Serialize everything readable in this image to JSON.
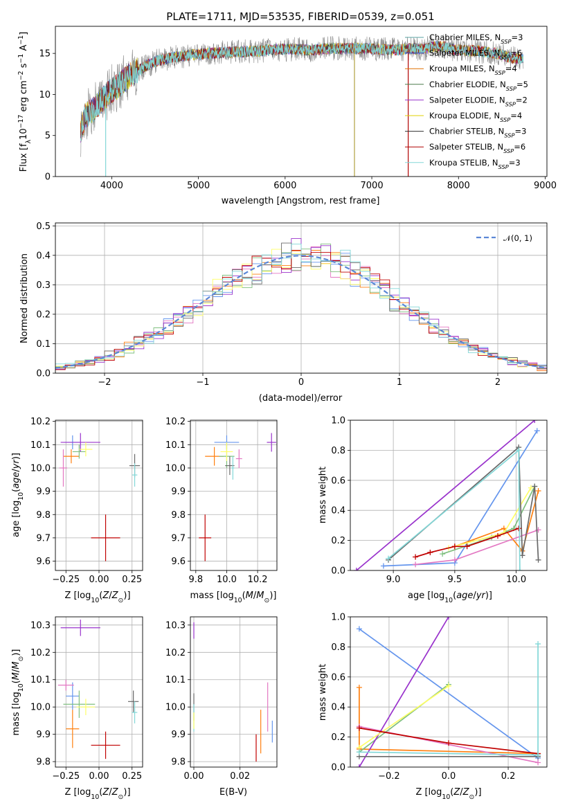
{
  "figure_title": "PLATE=1711, MJD=53535, FIBERID=0539, z=0.051",
  "model_colors": [
    "#6495ed",
    "#ff7f0e",
    "#e377c2",
    "#7fbf7f",
    "#9932cc",
    "#ffff66",
    "#696969",
    "#c00000",
    "#82d7d7"
  ],
  "chart_data": [
    {
      "id": "spectrum",
      "type": "line",
      "title": "PLATE=1711, MJD=53535, FIBERID=0539, z=0.051",
      "xlabel": "wavelength [Angstrom, rest frame]",
      "ylabel": "Flux [f_λ 10^-17 erg cm^-2 s^-1 A^-1]",
      "xlim": [
        3350,
        9020
      ],
      "ylim": [
        0,
        18.3
      ],
      "xticks": [
        4000,
        5000,
        6000,
        7000,
        8000,
        9000
      ],
      "yticks": [
        0,
        5,
        10,
        15
      ],
      "grid": false,
      "legend_position": "right",
      "legend": [
        {
          "base": "Chabrier MILES, N",
          "sub": "SSP",
          "tail": "=3",
          "color": "#5aa0a0"
        },
        {
          "base": "Salpeter MILES, N",
          "sub": "SSP",
          "tail": "=6",
          "color": "#2f4fcf"
        },
        {
          "base": "Kroupa MILES, N",
          "sub": "SSP",
          "tail": "=4",
          "color": "#e07000"
        },
        {
          "base": "Chabrier ELODIE, N",
          "sub": "SSP",
          "tail": "=5",
          "color": "#4a7a4a"
        },
        {
          "base": "Salpeter ELODIE, N",
          "sub": "SSP",
          "tail": "=2",
          "color": "#9932cc"
        },
        {
          "base": "Kroupa ELODIE, N",
          "sub": "SSP",
          "tail": "=4",
          "color": "#e0d000"
        },
        {
          "base": "Chabrier STELIB, N",
          "sub": "SSP",
          "tail": "=3",
          "color": "#303030"
        },
        {
          "base": "Salpeter STELIB, N",
          "sub": "SSP",
          "tail": "=6",
          "color": "#b00000"
        },
        {
          "base": "Kroupa STELIB, N",
          "sub": "SSP",
          "tail": "=3",
          "color": "#82d7d7"
        }
      ],
      "continuum_points": {
        "x": [
          3640,
          3700,
          3800,
          3900,
          4000,
          4100,
          4200,
          4300,
          4400,
          4500,
          4700,
          4900,
          5100,
          5300,
          5500,
          5700,
          5900,
          6100,
          6300,
          6500,
          6700,
          6900,
          7100,
          7300,
          7450,
          7600,
          7700,
          7800,
          7900,
          8000,
          8200,
          8400,
          8600,
          8750
        ],
        "y": [
          5.5,
          7.5,
          8.2,
          9.5,
          10.5,
          11.3,
          12.3,
          12.9,
          13.5,
          14.0,
          14.5,
          14.8,
          15.0,
          15.1,
          15.2,
          15.3,
          15.5,
          15.5,
          15.4,
          15.6,
          15.6,
          15.6,
          15.5,
          15.4,
          15.6,
          15.5,
          15.8,
          15.9,
          15.6,
          15.4,
          15.3,
          15.1,
          14.5,
          14.3
        ]
      },
      "drops": [
        {
          "x": 3930,
          "y_min": 0
        },
        {
          "x": 6800,
          "y_min": 0
        },
        {
          "x": 7420,
          "y_min": 0
        }
      ]
    },
    {
      "id": "residuals",
      "type": "step",
      "xlabel": "(data-model)/error",
      "ylabel": "Normed distribution",
      "xlim": [
        -2.5,
        2.5
      ],
      "ylim": [
        0,
        0.51
      ],
      "xticks": [
        -2,
        -1,
        0,
        1,
        2
      ],
      "yticks": [
        0.0,
        0.1,
        0.2,
        0.3,
        0.4,
        0.5
      ],
      "grid": true,
      "legend": [
        {
          "label": "𝒩(0, 1)",
          "color": "#5b87d6",
          "style": "dashed"
        }
      ],
      "legend_position": "top-right",
      "reference_curve": {
        "name": "𝒩(0, 1)",
        "mean": 0,
        "sigma": 1
      },
      "bin_width": 0.1,
      "bin_start": -2.5,
      "bins": 50
    },
    {
      "id": "age_vs_Z",
      "type": "errorbar",
      "xlabel": "Z [log10(Z/Z⊙)]",
      "ylabel": "age [log10(age/yr)]",
      "xlim": [
        -0.33,
        0.33
      ],
      "ylim": [
        9.56,
        10.205
      ],
      "xticks": [
        -0.25,
        0.0,
        0.25
      ],
      "yticks": [
        9.6,
        9.7,
        9.8,
        9.9,
        10.0,
        10.1,
        10.2
      ],
      "grid": true,
      "points": [
        {
          "x": -0.2,
          "y": 10.11,
          "xerr": 0.06,
          "yerr": 0.03,
          "color": "#6495ed"
        },
        {
          "x": -0.21,
          "y": 10.05,
          "xerr": 0.06,
          "yerr": 0.03,
          "color": "#ff7f0e"
        },
        {
          "x": -0.27,
          "y": 10.0,
          "xerr": 0.03,
          "yerr": 0.08,
          "color": "#e377c2"
        },
        {
          "x": -0.15,
          "y": 10.07,
          "xerr": 0.05,
          "yerr": 0.03,
          "color": "#7fbf7f"
        },
        {
          "x": -0.14,
          "y": 10.11,
          "xerr": 0.15,
          "yerr": 0.04,
          "color": "#9932cc"
        },
        {
          "x": -0.1,
          "y": 10.08,
          "xerr": 0.05,
          "yerr": 0.03,
          "color": "#ffff66"
        },
        {
          "x": 0.27,
          "y": 10.01,
          "xerr": 0.04,
          "yerr": 0.05,
          "color": "#696969"
        },
        {
          "x": 0.05,
          "y": 9.7,
          "xerr": 0.11,
          "yerr": 0.1,
          "color": "#c00000"
        },
        {
          "x": 0.27,
          "y": 9.97,
          "xerr": 0.02,
          "yerr": 0.05,
          "color": "#82d7d7"
        }
      ]
    },
    {
      "id": "age_vs_mass",
      "type": "errorbar",
      "xlabel": "mass [log10(M/M⊙)]",
      "ylabel": "",
      "xlim": [
        9.765,
        10.325
      ],
      "ylim": [
        9.56,
        10.205
      ],
      "xticks": [
        9.8,
        10.0,
        10.2
      ],
      "yticks": [
        9.6,
        9.7,
        9.8,
        9.9,
        10.0,
        10.1,
        10.2
      ],
      "grid": true,
      "points": [
        {
          "x": 10.0,
          "y": 10.11,
          "xerr": 0.08,
          "yerr": 0.03,
          "color": "#6495ed"
        },
        {
          "x": 9.92,
          "y": 10.05,
          "xerr": 0.06,
          "yerr": 0.04,
          "color": "#ff7f0e"
        },
        {
          "x": 10.08,
          "y": 10.04,
          "xerr": 0.02,
          "yerr": 0.04,
          "color": "#e377c2"
        },
        {
          "x": 10.0,
          "y": 10.05,
          "xerr": 0.05,
          "yerr": 0.05,
          "color": "#7fbf7f"
        },
        {
          "x": 10.29,
          "y": 10.11,
          "xerr": 0.03,
          "yerr": 0.04,
          "color": "#9932cc"
        },
        {
          "x": 10.0,
          "y": 10.07,
          "xerr": 0.04,
          "yerr": 0.04,
          "color": "#ffff66"
        },
        {
          "x": 10.02,
          "y": 10.01,
          "xerr": 0.03,
          "yerr": 0.04,
          "color": "#696969"
        },
        {
          "x": 9.86,
          "y": 9.7,
          "xerr": 0.04,
          "yerr": 0.1,
          "color": "#c00000"
        },
        {
          "x": 10.04,
          "y": 10.0,
          "xerr": 0.01,
          "yerr": 0.05,
          "color": "#82d7d7"
        }
      ]
    },
    {
      "id": "massweight_vs_age",
      "type": "line",
      "xlabel": "age [log10(age/yr)]",
      "ylabel": "mass weight",
      "xlim": [
        8.65,
        10.25
      ],
      "ylim": [
        0,
        1.0
      ],
      "xticks": [
        9.0,
        9.5,
        10.0
      ],
      "yticks": [
        0.0,
        0.2,
        0.4,
        0.6,
        0.8,
        1.0
      ],
      "grid": true,
      "series": [
        {
          "color": "#6495ed",
          "points": [
            [
              8.92,
              0.03
            ],
            [
              9.5,
              0.05
            ],
            [
              10.17,
              0.93
            ]
          ]
        },
        {
          "color": "#ff7f0e",
          "points": [
            [
              9.5,
              0.16
            ],
            [
              9.9,
              0.28
            ],
            [
              10.05,
              0.13
            ],
            [
              10.18,
              0.53
            ]
          ]
        },
        {
          "color": "#e377c2",
          "points": [
            [
              9.18,
              0.04
            ],
            [
              9.5,
              0.07
            ],
            [
              10.18,
              0.27
            ]
          ]
        },
        {
          "color": "#7fbf7f",
          "points": [
            [
              9.4,
              0.11
            ],
            [
              9.8,
              0.22
            ],
            [
              9.98,
              0.28
            ],
            [
              10.15,
              0.56
            ]
          ]
        },
        {
          "color": "#9932cc",
          "points": [
            [
              8.7,
              0.0
            ],
            [
              10.15,
              1.0
            ]
          ]
        },
        {
          "color": "#ffff66",
          "points": [
            [
              9.45,
              0.15
            ],
            [
              9.9,
              0.25
            ],
            [
              10.12,
              0.55
            ]
          ]
        },
        {
          "color": "#696969",
          "points": [
            [
              8.96,
              0.07
            ],
            [
              10.02,
              0.82
            ],
            [
              10.05,
              0.1
            ],
            [
              10.15,
              0.56
            ],
            [
              10.18,
              0.07
            ]
          ]
        },
        {
          "color": "#c00000",
          "points": [
            [
              9.18,
              0.09
            ],
            [
              9.3,
              0.12
            ],
            [
              9.5,
              0.16
            ],
            [
              9.6,
              0.16
            ],
            [
              9.85,
              0.23
            ],
            [
              10.02,
              0.28
            ]
          ]
        },
        {
          "color": "#82d7d7",
          "points": [
            [
              8.96,
              0.08
            ],
            [
              10.02,
              0.8
            ],
            [
              10.03,
              0.0
            ]
          ]
        }
      ]
    },
    {
      "id": "mass_vs_Z",
      "type": "errorbar",
      "xlabel": "Z [log10(Z/Z⊙)]",
      "ylabel": "mass [log10(M/M⊙)]",
      "xlim": [
        -0.33,
        0.33
      ],
      "ylim": [
        9.78,
        10.33
      ],
      "xticks": [
        -0.25,
        0.0,
        0.25
      ],
      "yticks": [
        9.8,
        9.9,
        10.0,
        10.1,
        10.2,
        10.3
      ],
      "grid": true,
      "points": [
        {
          "x": -0.2,
          "y": 10.04,
          "xerr": 0.05,
          "yerr": 0.05,
          "color": "#6495ed"
        },
        {
          "x": -0.2,
          "y": 9.92,
          "xerr": 0.05,
          "yerr": 0.07,
          "color": "#ff7f0e"
        },
        {
          "x": -0.25,
          "y": 10.08,
          "xerr": 0.06,
          "yerr": 0.02,
          "color": "#e377c2"
        },
        {
          "x": -0.15,
          "y": 10.01,
          "xerr": 0.12,
          "yerr": 0.05,
          "color": "#7fbf7f"
        },
        {
          "x": -0.14,
          "y": 10.29,
          "xerr": 0.15,
          "yerr": 0.03,
          "color": "#9932cc"
        },
        {
          "x": -0.1,
          "y": 10.0,
          "xerr": 0.07,
          "yerr": 0.03,
          "color": "#ffff66"
        },
        {
          "x": 0.26,
          "y": 10.02,
          "xerr": 0.04,
          "yerr": 0.04,
          "color": "#696969"
        },
        {
          "x": 0.05,
          "y": 9.86,
          "xerr": 0.11,
          "yerr": 0.05,
          "color": "#c00000"
        },
        {
          "x": 0.27,
          "y": 9.98,
          "xerr": 0.02,
          "yerr": 0.04,
          "color": "#82d7d7"
        }
      ]
    },
    {
      "id": "mass_vs_ebv",
      "type": "errorbar",
      "xlabel": "E(B-V)",
      "ylabel": "",
      "xlim": [
        -0.0015,
        0.036
      ],
      "ylim": [
        9.78,
        10.33
      ],
      "xticks": [
        0.0,
        0.02
      ],
      "yticks": [
        9.8,
        9.9,
        10.0,
        10.1,
        10.2,
        10.3
      ],
      "grid": true,
      "points": [
        {
          "x": 0.0,
          "y": 10.28,
          "xerr": 0.0,
          "yerr": 0.03,
          "color": "#9932cc"
        },
        {
          "x": 0.0,
          "y": 10.0,
          "xerr": 0.0,
          "yerr": 0.05,
          "color": "#696969"
        },
        {
          "x": 0.0,
          "y": 9.96,
          "xerr": 0.0,
          "yerr": 0.05,
          "color": "#82d7d7"
        },
        {
          "x": 0.0,
          "y": 9.95,
          "xerr": 0.0,
          "yerr": 0.03,
          "color": "#ffff66"
        },
        {
          "x": 0.027,
          "y": 9.85,
          "xerr": 0.0,
          "yerr": 0.05,
          "color": "#c00000"
        },
        {
          "x": 0.029,
          "y": 9.91,
          "xerr": 0.0,
          "yerr": 0.08,
          "color": "#ff7f0e"
        },
        {
          "x": 0.032,
          "y": 10.0,
          "xerr": 0.0,
          "yerr": 0.09,
          "color": "#e377c2"
        },
        {
          "x": 0.034,
          "y": 9.91,
          "xerr": 0.0,
          "yerr": 0.04,
          "color": "#6495ed"
        }
      ]
    },
    {
      "id": "massweight_vs_Z",
      "type": "line",
      "xlabel": "Z [log10(Z/Z⊙)]",
      "ylabel": "mass weight",
      "xlim": [
        -0.33,
        0.33
      ],
      "ylim": [
        0,
        1.0
      ],
      "xticks": [
        -0.2,
        0.0,
        0.2
      ],
      "yticks": [
        0.0,
        0.2,
        0.4,
        0.6,
        0.8,
        1.0
      ],
      "grid": true,
      "series": [
        {
          "color": "#6495ed",
          "points": [
            [
              -0.3,
              0.92
            ],
            [
              0.3,
              0.06
            ]
          ]
        },
        {
          "color": "#ff7f0e",
          "points": [
            [
              -0.3,
              0.53
            ],
            [
              -0.3,
              0.12
            ],
            [
              0.3,
              0.09
            ]
          ]
        },
        {
          "color": "#e377c2",
          "points": [
            [
              -0.3,
              0.27
            ],
            [
              0.3,
              0.03
            ]
          ]
        },
        {
          "color": "#7fbf7f",
          "points": [
            [
              -0.3,
              0.1
            ],
            [
              0.0,
              0.55
            ]
          ]
        },
        {
          "color": "#9932cc",
          "points": [
            [
              -0.3,
              0.0
            ],
            [
              0.0,
              1.0
            ]
          ]
        },
        {
          "color": "#ffff66",
          "points": [
            [
              -0.3,
              0.13
            ],
            [
              0.0,
              0.54
            ]
          ]
        },
        {
          "color": "#696969",
          "points": [
            [
              -0.3,
              0.07
            ],
            [
              0.3,
              0.07
            ]
          ]
        },
        {
          "color": "#c00000",
          "points": [
            [
              -0.3,
              0.26
            ],
            [
              0.0,
              0.16
            ],
            [
              0.3,
              0.09
            ]
          ]
        },
        {
          "color": "#82d7d7",
          "points": [
            [
              -0.3,
              0.1
            ],
            [
              0.3,
              0.08
            ],
            [
              0.3,
              0.82
            ]
          ]
        }
      ]
    }
  ]
}
